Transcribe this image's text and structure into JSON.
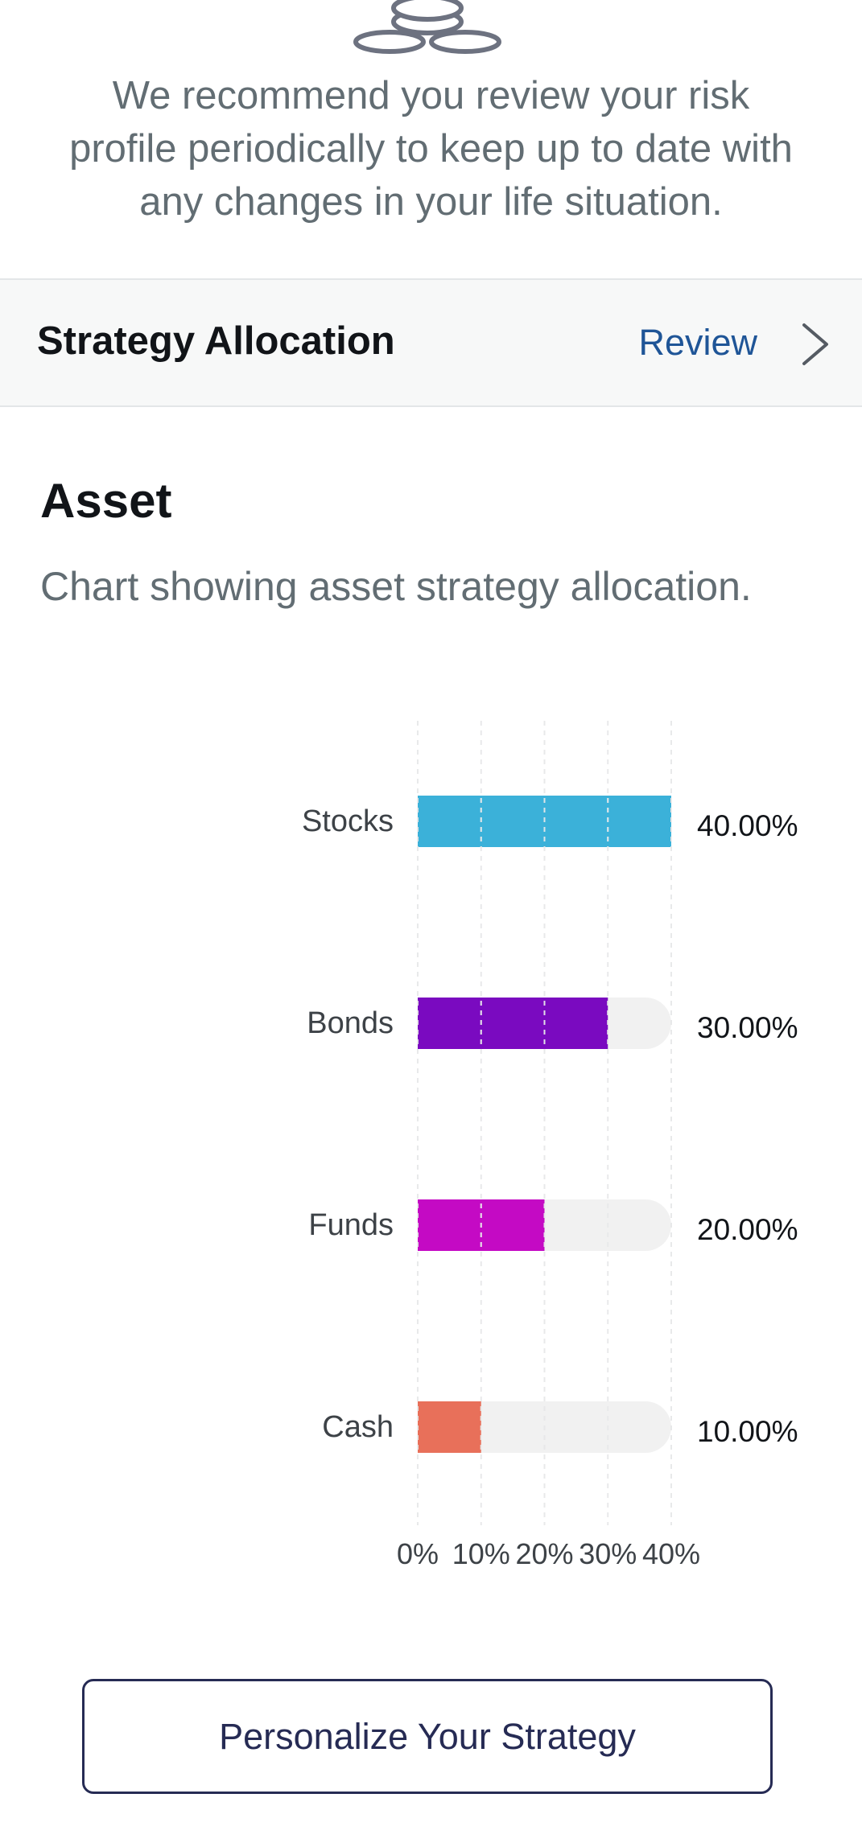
{
  "intro": {
    "text": "We recommend you review your risk profile periodically to keep up to date with any changes in your life situation."
  },
  "strategy": {
    "title": "Strategy Allocation",
    "review_label": "Review"
  },
  "asset": {
    "heading": "Asset",
    "description": "Chart showing asset strategy allocation."
  },
  "chart_data": {
    "type": "bar",
    "orientation": "horizontal",
    "categories": [
      "Stocks",
      "Bonds",
      "Funds",
      "Cash"
    ],
    "values": [
      40,
      30,
      20,
      10
    ],
    "value_labels": [
      "40.00%",
      "30.00%",
      "20.00%",
      "10.00%"
    ],
    "colors": [
      "#3bb1d9",
      "#7a0ac0",
      "#c40ac4",
      "#e8705a"
    ],
    "track_color": "#f1f1f1",
    "xlim": [
      0,
      40
    ],
    "x_ticks": [
      "0%",
      "10%",
      "20%",
      "30%",
      "40%"
    ],
    "grid": true
  },
  "cta": {
    "label": "Personalize Your Strategy"
  }
}
